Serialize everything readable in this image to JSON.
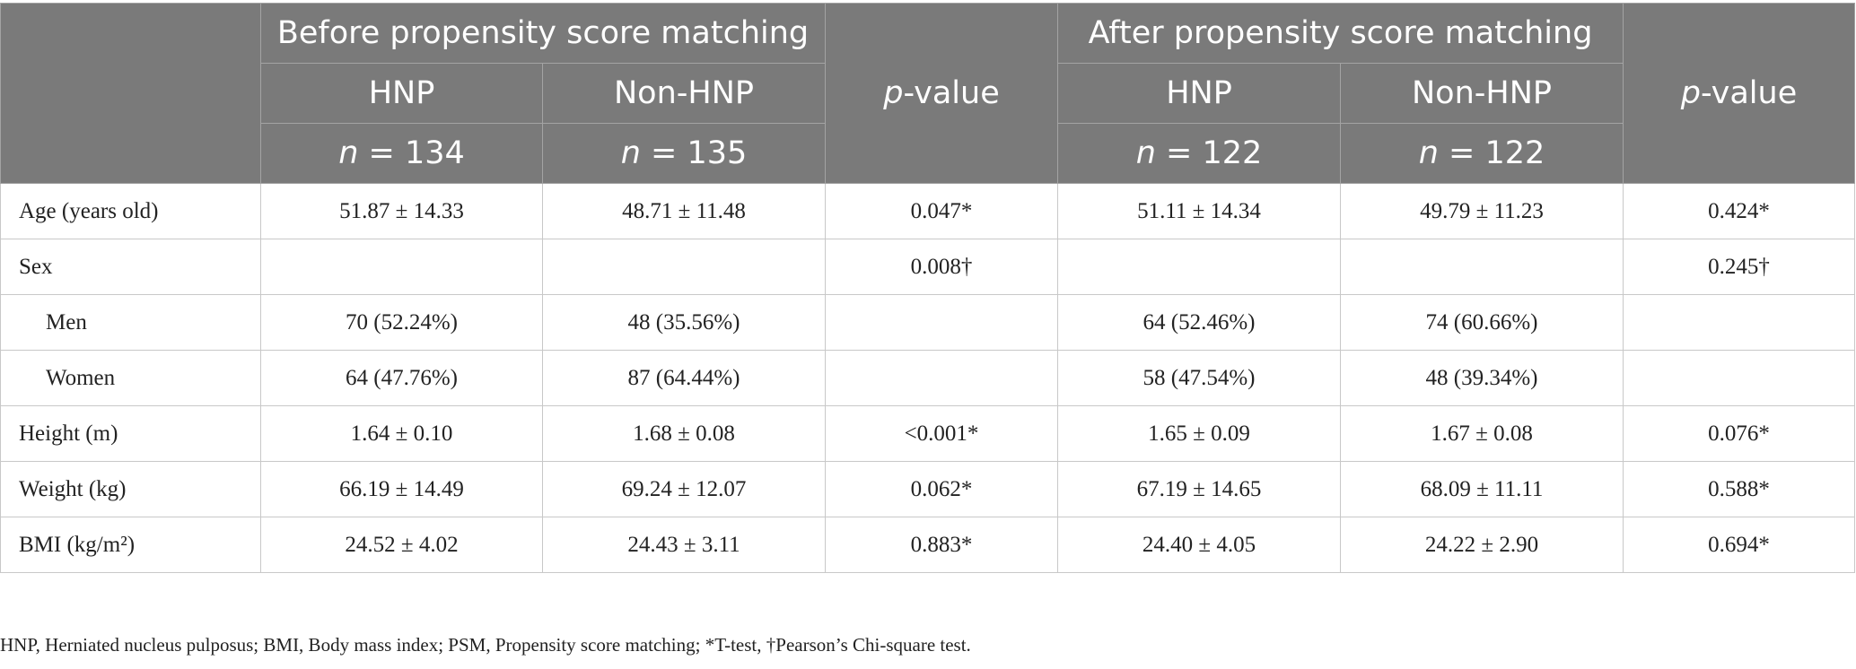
{
  "header": {
    "before_title": "Before propensity score matching",
    "after_title": "After propensity score matching",
    "hnp": "HNP",
    "non_hnp": "Non-HNP",
    "p_italic": "p",
    "p_suffix": "-value",
    "n_italic": "n",
    "before_hnp_n": " = 134",
    "before_non_hnp_n": " = 135",
    "after_hnp_n": " = 122",
    "after_non_hnp_n": " = 122"
  },
  "rows": [
    {
      "label": "Age (years old)",
      "b_hnp": "51.87 ± 14.33",
      "b_non": "48.71 ± 11.48",
      "b_p": "0.047*",
      "a_hnp": "51.11 ± 14.34",
      "a_non": "49.79 ± 11.23",
      "a_p": "0.424*"
    },
    {
      "label": "Sex",
      "b_hnp": "",
      "b_non": "",
      "b_p": "0.008†",
      "a_hnp": "",
      "a_non": "",
      "a_p": "0.245†"
    },
    {
      "label": "Men",
      "b_hnp": "70 (52.24%)",
      "b_non": "48 (35.56%)",
      "b_p": "",
      "a_hnp": "64 (52.46%)",
      "a_non": "74 (60.66%)",
      "a_p": ""
    },
    {
      "label": "Women",
      "b_hnp": "64 (47.76%)",
      "b_non": "87 (64.44%)",
      "b_p": "",
      "a_hnp": "58 (47.54%)",
      "a_non": "48 (39.34%)",
      "a_p": ""
    },
    {
      "label": "Height (m)",
      "b_hnp": "1.64 ± 0.10",
      "b_non": "1.68 ± 0.08",
      "b_p": "<0.001*",
      "a_hnp": "1.65 ± 0.09",
      "a_non": "1.67 ± 0.08",
      "a_p": "0.076*"
    },
    {
      "label": "Weight (kg)",
      "b_hnp": "66.19 ± 14.49",
      "b_non": "69.24 ± 12.07",
      "b_p": "0.062*",
      "a_hnp": "67.19 ± 14.65",
      "a_non": "68.09 ± 11.11",
      "a_p": "0.588*"
    },
    {
      "label": "BMI (kg/m²)",
      "b_hnp": "24.52 ± 4.02",
      "b_non": "24.43 ± 3.11",
      "b_p": "0.883*",
      "a_hnp": "24.40 ± 4.05",
      "a_non": "24.22 ± 2.90",
      "a_p": "0.694*"
    }
  ],
  "footnote": "HNP, Herniated nucleus pulposus; BMI, Body mass index; PSM, Propensity score matching; *T-test, †Pearson’s Chi-square test."
}
